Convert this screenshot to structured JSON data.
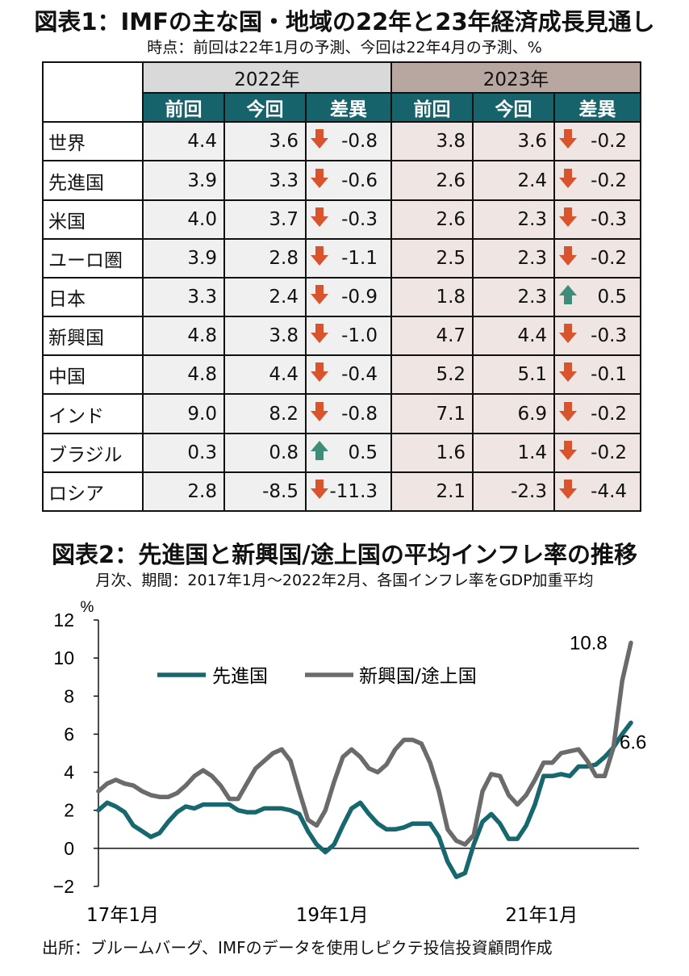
{
  "table": {
    "title": "図表1：IMFの主な国・地域の22年と23年経済成長見通し",
    "subtitle": "時点：前回は22年1月の予測、今回は22年4月の予測、%",
    "year_2022": "2022年",
    "year_2023": "2023年",
    "col_prev": "前回",
    "col_curr": "今回",
    "col_diff": "差異",
    "rows": [
      {
        "label": "世界",
        "p22": "4.4",
        "c22": "3.6",
        "d22": "-0.8",
        "p23": "3.8",
        "c23": "3.6",
        "d23": "-0.2"
      },
      {
        "label": "先進国",
        "p22": "3.9",
        "c22": "3.3",
        "d22": "-0.6",
        "p23": "2.6",
        "c23": "2.4",
        "d23": "-0.2"
      },
      {
        "label": "米国",
        "p22": "4.0",
        "c22": "3.7",
        "d22": "-0.3",
        "p23": "2.6",
        "c23": "2.3",
        "d23": "-0.3"
      },
      {
        "label": "ユーロ圏",
        "p22": "3.9",
        "c22": "2.8",
        "d22": "-1.1",
        "p23": "2.5",
        "c23": "2.3",
        "d23": "-0.2"
      },
      {
        "label": "日本",
        "p22": "3.3",
        "c22": "2.4",
        "d22": "-0.9",
        "p23": "1.8",
        "c23": "2.3",
        "d23": "0.5"
      },
      {
        "label": "新興国",
        "p22": "4.8",
        "c22": "3.8",
        "d22": "-1.0",
        "p23": "4.7",
        "c23": "4.4",
        "d23": "-0.3"
      },
      {
        "label": "中国",
        "p22": "4.8",
        "c22": "4.4",
        "d22": "-0.4",
        "p23": "5.2",
        "c23": "5.1",
        "d23": "-0.1"
      },
      {
        "label": "インド",
        "p22": "9.0",
        "c22": "8.2",
        "d22": "-0.8",
        "p23": "7.1",
        "c23": "6.9",
        "d23": "-0.2"
      },
      {
        "label": "ブラジル",
        "p22": "0.3",
        "c22": "0.8",
        "d22": "0.5",
        "p23": "1.6",
        "c23": "1.4",
        "d23": "-0.2"
      },
      {
        "label": "ロシア",
        "p22": "2.8",
        "c22": "-8.5",
        "d22": "-11.3",
        "p23": "2.1",
        "c23": "-2.3",
        "d23": "-4.4"
      }
    ],
    "colors": {
      "header": "#17636b",
      "down_arrow": "#d9532c",
      "up_arrow": "#3d8d7a"
    },
    "icons": {
      "down": "down-arrow-icon",
      "up": "up-arrow-icon"
    }
  },
  "chart_data": {
    "type": "line",
    "title": "図表2：先進国と新興国/途上国の平均インフレ率の推移",
    "subtitle": "月次、期間：2017年1月～2022年2月、各国インフレ率をGDP加重平均",
    "ylabel": "%",
    "ylim": [
      -2,
      12
    ],
    "yticks": [
      -2,
      0,
      2,
      4,
      6,
      8,
      10,
      12
    ],
    "xlim": [
      "2017-01",
      "2022-02"
    ],
    "xticks": [
      {
        "x": "2017-01",
        "label": "17年1月"
      },
      {
        "x": "2019-01",
        "label": "19年1月"
      },
      {
        "x": "2021-01",
        "label": "21年1月"
      }
    ],
    "legend_position": "top-center",
    "grid": false,
    "series": [
      {
        "name": "先進国",
        "color": "#17676e",
        "end_label": "6.6",
        "points": [
          [
            "2017-01",
            2.0
          ],
          [
            "2017-02",
            2.4
          ],
          [
            "2017-03",
            2.2
          ],
          [
            "2017-04",
            1.9
          ],
          [
            "2017-05",
            1.2
          ],
          [
            "2017-06",
            0.9
          ],
          [
            "2017-07",
            0.6
          ],
          [
            "2017-08",
            0.8
          ],
          [
            "2017-09",
            1.4
          ],
          [
            "2017-10",
            1.9
          ],
          [
            "2017-11",
            2.2
          ],
          [
            "2017-12",
            2.1
          ],
          [
            "2018-01",
            2.3
          ],
          [
            "2018-02",
            2.3
          ],
          [
            "2018-03",
            2.3
          ],
          [
            "2018-04",
            2.3
          ],
          [
            "2018-05",
            2.0
          ],
          [
            "2018-06",
            1.9
          ],
          [
            "2018-07",
            1.9
          ],
          [
            "2018-08",
            2.1
          ],
          [
            "2018-09",
            2.1
          ],
          [
            "2018-10",
            2.1
          ],
          [
            "2018-11",
            2.0
          ],
          [
            "2018-12",
            1.8
          ],
          [
            "2019-01",
            0.9
          ],
          [
            "2019-02",
            0.2
          ],
          [
            "2019-03",
            -0.2
          ],
          [
            "2019-04",
            0.2
          ],
          [
            "2019-05",
            1.2
          ],
          [
            "2019-06",
            2.1
          ],
          [
            "2019-07",
            2.4
          ],
          [
            "2019-08",
            1.8
          ],
          [
            "2019-09",
            1.3
          ],
          [
            "2019-10",
            1.0
          ],
          [
            "2019-11",
            1.0
          ],
          [
            "2019-12",
            1.1
          ],
          [
            "2020-01",
            1.3
          ],
          [
            "2020-02",
            1.3
          ],
          [
            "2020-03",
            1.3
          ],
          [
            "2020-04",
            0.6
          ],
          [
            "2020-05",
            -0.7
          ],
          [
            "2020-06",
            -1.5
          ],
          [
            "2020-07",
            -1.3
          ],
          [
            "2020-08",
            0.2
          ],
          [
            "2020-09",
            1.4
          ],
          [
            "2020-10",
            1.8
          ],
          [
            "2020-11",
            1.3
          ],
          [
            "2020-12",
            0.5
          ],
          [
            "2021-01",
            0.5
          ],
          [
            "2021-02",
            1.2
          ],
          [
            "2021-03",
            2.3
          ],
          [
            "2021-04",
            3.8
          ],
          [
            "2021-05",
            3.8
          ],
          [
            "2021-06",
            3.9
          ],
          [
            "2021-07",
            3.8
          ],
          [
            "2021-08",
            4.3
          ],
          [
            "2021-09",
            4.3
          ],
          [
            "2021-10",
            4.4
          ],
          [
            "2021-11",
            4.8
          ],
          [
            "2021-12",
            5.3
          ],
          [
            "2022-01",
            6.0
          ],
          [
            "2022-02",
            6.6
          ]
        ]
      },
      {
        "name": "新興国/途上国",
        "color": "#6b6b6b",
        "end_label": "10.8",
        "points": [
          [
            "2017-01",
            3.0
          ],
          [
            "2017-02",
            3.4
          ],
          [
            "2017-03",
            3.6
          ],
          [
            "2017-04",
            3.4
          ],
          [
            "2017-05",
            3.3
          ],
          [
            "2017-06",
            3.0
          ],
          [
            "2017-07",
            2.8
          ],
          [
            "2017-08",
            2.7
          ],
          [
            "2017-09",
            2.7
          ],
          [
            "2017-10",
            2.9
          ],
          [
            "2017-11",
            3.3
          ],
          [
            "2017-12",
            3.8
          ],
          [
            "2018-01",
            4.1
          ],
          [
            "2018-02",
            3.8
          ],
          [
            "2018-03",
            3.3
          ],
          [
            "2018-04",
            2.6
          ],
          [
            "2018-05",
            2.6
          ],
          [
            "2018-06",
            3.4
          ],
          [
            "2018-07",
            4.2
          ],
          [
            "2018-08",
            4.6
          ],
          [
            "2018-09",
            5.0
          ],
          [
            "2018-10",
            5.2
          ],
          [
            "2018-11",
            4.6
          ],
          [
            "2018-12",
            3.0
          ],
          [
            "2019-01",
            1.5
          ],
          [
            "2019-02",
            1.2
          ],
          [
            "2019-03",
            2.0
          ],
          [
            "2019-04",
            3.5
          ],
          [
            "2019-05",
            4.8
          ],
          [
            "2019-06",
            5.2
          ],
          [
            "2019-07",
            4.8
          ],
          [
            "2019-08",
            4.2
          ],
          [
            "2019-09",
            4.0
          ],
          [
            "2019-10",
            4.4
          ],
          [
            "2019-11",
            5.2
          ],
          [
            "2019-12",
            5.7
          ],
          [
            "2020-01",
            5.7
          ],
          [
            "2020-02",
            5.5
          ],
          [
            "2020-03",
            4.5
          ],
          [
            "2020-04",
            3.0
          ],
          [
            "2020-05",
            1.0
          ],
          [
            "2020-06",
            0.4
          ],
          [
            "2020-07",
            0.2
          ],
          [
            "2020-08",
            0.7
          ],
          [
            "2020-09",
            3.0
          ],
          [
            "2020-10",
            3.9
          ],
          [
            "2020-11",
            3.8
          ],
          [
            "2020-12",
            2.8
          ],
          [
            "2021-01",
            2.3
          ],
          [
            "2021-02",
            2.8
          ],
          [
            "2021-03",
            3.6
          ],
          [
            "2021-04",
            4.5
          ],
          [
            "2021-05",
            4.5
          ],
          [
            "2021-06",
            5.0
          ],
          [
            "2021-07",
            5.1
          ],
          [
            "2021-08",
            5.2
          ],
          [
            "2021-09",
            4.6
          ],
          [
            "2021-10",
            3.8
          ],
          [
            "2021-11",
            3.8
          ],
          [
            "2021-12",
            5.3
          ],
          [
            "2022-01",
            8.8
          ],
          [
            "2022-02",
            10.8
          ]
        ]
      }
    ]
  },
  "source": "出所：ブルームバーグ、IMFのデータを使用しピクテ投信投資顧問作成"
}
